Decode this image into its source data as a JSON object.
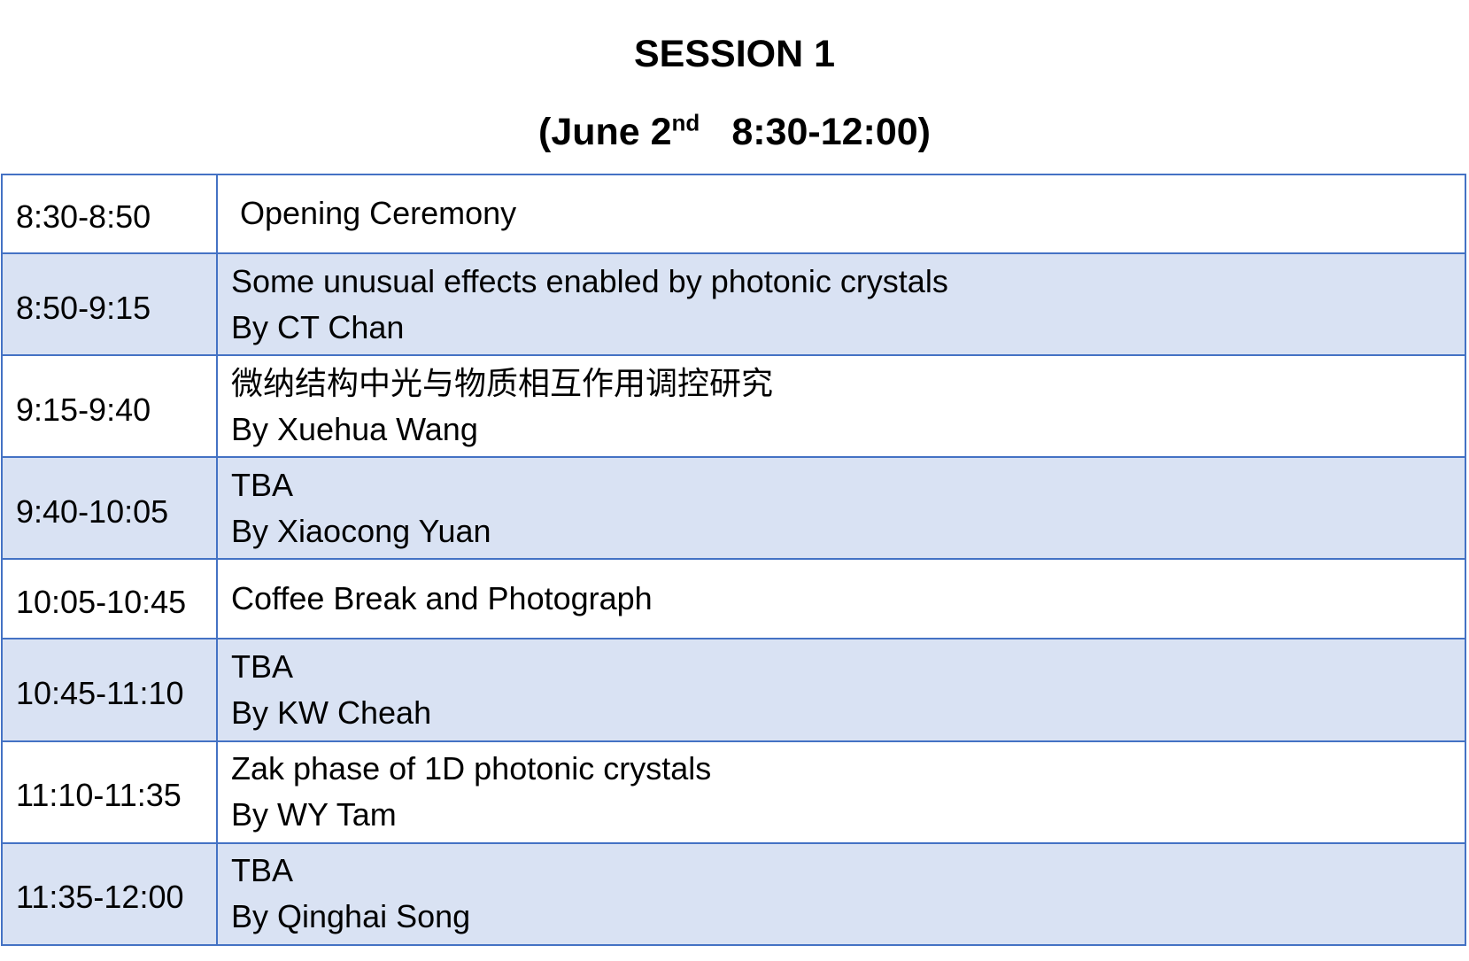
{
  "header": {
    "session_title": "SESSION 1",
    "date_prefix": "(June 2",
    "date_suffix": "nd",
    "time_range": "8:30-12:00)"
  },
  "schedule": [
    {
      "time": "8:30-8:50",
      "title": "Opening Ceremony",
      "speaker": ""
    },
    {
      "time": "8:50-9:15",
      "title": "Some unusual effects enabled by photonic crystals",
      "speaker": "By CT Chan"
    },
    {
      "time": "9:15-9:40",
      "title": "微纳结构中光与物质相互作用调控研究",
      "speaker": "By Xuehua Wang"
    },
    {
      "time": "9:40-10:05",
      "title": "TBA",
      "speaker": "By Xiaocong Yuan"
    },
    {
      "time": "10:05-10:45",
      "title": "Coffee Break  and Photograph",
      "speaker": ""
    },
    {
      "time": "10:45-11:10",
      "title": "TBA",
      "speaker": "By KW Cheah"
    },
    {
      "time": "11:10-11:35",
      "title": "Zak phase of 1D photonic crystals",
      "speaker": "By WY Tam"
    },
    {
      "time": "11:35-12:00",
      "title": "TBA",
      "speaker": "By Qinghai Song"
    }
  ],
  "colors": {
    "border": "#4472c4",
    "shaded_row": "#d9e2f3",
    "plain_row": "#ffffff"
  }
}
